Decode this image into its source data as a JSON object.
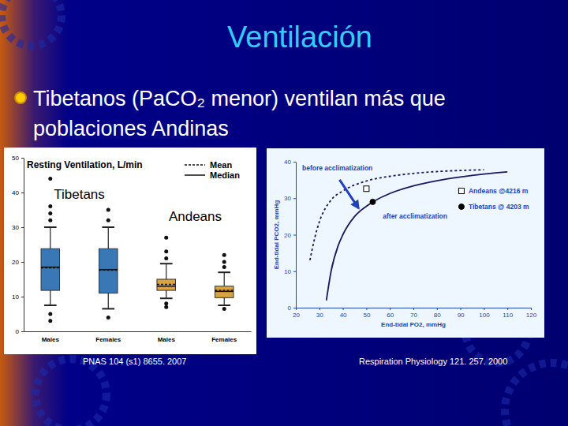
{
  "title": "Ventilación",
  "bullet": "Tibetanos (PaCO₂ menor) ventilan más que poblaciones Andinas",
  "chart_data": [
    {
      "type": "box",
      "title": "Resting Ventilation, L/min",
      "categories": [
        "Males",
        "Females",
        "Males",
        "Females"
      ],
      "colors": [
        "#3a78b5",
        "#3a78b5",
        "#d9a440",
        "#d9a440"
      ],
      "low": [
        7.5,
        6.5,
        9.5,
        7.5
      ],
      "q1": [
        11.8,
        11,
        11.8,
        9.7
      ],
      "median": [
        18.5,
        17.8,
        13,
        11.5
      ],
      "mean": [
        18.3,
        17.6,
        13.5,
        11.8
      ],
      "q3": [
        23.8,
        23.8,
        15,
        13
      ],
      "high": [
        30,
        30,
        19.5,
        17
      ],
      "outliers": [
        [
          32,
          34,
          36,
          44,
          5,
          3
        ],
        [
          32,
          35,
          4
        ],
        [
          21,
          23,
          27,
          8,
          7
        ],
        [
          18.5,
          20,
          22,
          6.5
        ]
      ],
      "mean_label": "Mean",
      "median_label": "Median",
      "annotations": [
        "Tibetans",
        "Andeans"
      ],
      "ylim": [
        0,
        50
      ],
      "yticks": [
        0,
        10,
        20,
        30,
        40,
        50
      ],
      "legend": "top-right",
      "grid": false,
      "source": "PNAS 104 (s1) 8655. 2007"
    },
    {
      "type": "line",
      "xlabel": "End-tidal PO2, mmHg",
      "ylabel": "End-tidal PCO2, mmHg",
      "xlim": [
        20,
        120
      ],
      "xticks": [
        20,
        30,
        40,
        50,
        60,
        70,
        80,
        90,
        100,
        110,
        120
      ],
      "ylim": [
        0,
        40
      ],
      "yticks": [
        0,
        10,
        20,
        30,
        40
      ],
      "legend": "top-right",
      "grid": false,
      "series": [
        {
          "name": "before acclimatization",
          "type": "line",
          "line_style": "dashed",
          "color": "#1a1a5e",
          "x": [
            26,
            28,
            30,
            35,
            40,
            50,
            60,
            70,
            80,
            90,
            100
          ],
          "values": [
            13,
            19,
            23.5,
            29.5,
            32,
            34.7,
            36,
            36.8,
            37.3,
            37.6,
            37.8
          ]
        },
        {
          "name": "after acclimatization",
          "type": "line",
          "line_style": "solid",
          "color": "#1a1a5e",
          "x": [
            33,
            35,
            38,
            40,
            45,
            50,
            55,
            60,
            70,
            80,
            90,
            100,
            110
          ],
          "values": [
            2,
            10,
            17,
            20,
            25,
            27.8,
            29.8,
            31.3,
            33.4,
            34.8,
            35.8,
            36.6,
            37.2
          ]
        },
        {
          "name": "Andeans @4216 m",
          "type": "scatter",
          "marker": "square",
          "color": "#ffffff",
          "x": [
            50
          ],
          "values": [
            32.6
          ]
        },
        {
          "name": "Tibetans @ 4203 m",
          "type": "scatter",
          "marker": "circle",
          "color": "#000000",
          "x": [
            52.7
          ],
          "values": [
            29
          ]
        }
      ],
      "source": "Respiration Physiology 121. 257. 2000"
    }
  ]
}
